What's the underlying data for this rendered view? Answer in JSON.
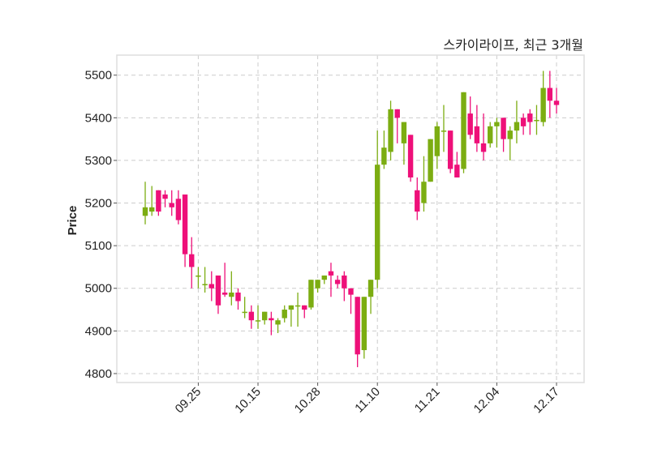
{
  "chart_data": {
    "type": "candlestick",
    "title": "스카이라이프, 최근 3개월",
    "xlabel": "",
    "ylabel": "Price",
    "ylim": [
      4779,
      5547
    ],
    "grid": true,
    "colors": {
      "up": "#7cad12",
      "down": "#ee1079",
      "grid": "#cccccc",
      "frame": "#dddddd"
    },
    "yticks": [
      4800,
      4900,
      5000,
      5100,
      5200,
      5300,
      5400,
      5500
    ],
    "xticks": [
      {
        "index": 8,
        "label": "09.25"
      },
      {
        "index": 17,
        "label": "10.15"
      },
      {
        "index": 26,
        "label": "10.28"
      },
      {
        "index": 35,
        "label": "11.10"
      },
      {
        "index": 44,
        "label": "11.21"
      },
      {
        "index": 53,
        "label": "12.04"
      },
      {
        "index": 62,
        "label": "12.17"
      }
    ],
    "ohlc": [
      [
        5170,
        5250,
        5150,
        5190
      ],
      [
        5180,
        5240,
        5170,
        5190
      ],
      [
        5230,
        5230,
        5170,
        5180
      ],
      [
        5220,
        5230,
        5190,
        5210
      ],
      [
        5200,
        5230,
        5170,
        5190
      ],
      [
        5210,
        5230,
        5150,
        5160
      ],
      [
        5220,
        5220,
        5050,
        5080
      ],
      [
        5080,
        5120,
        5000,
        5050
      ],
      [
        5030,
        5050,
        5000,
        5030
      ],
      [
        5010,
        5050,
        4990,
        5010
      ],
      [
        5010,
        5040,
        4970,
        5000
      ],
      [
        5030,
        5030,
        4940,
        4960
      ],
      [
        4990,
        5060,
        4980,
        4985
      ],
      [
        4980,
        5040,
        4960,
        4990
      ],
      [
        4990,
        5000,
        4950,
        4970
      ],
      [
        4945,
        4980,
        4930,
        4945
      ],
      [
        4945,
        4960,
        4905,
        4925
      ],
      [
        4925,
        4960,
        4905,
        4925
      ],
      [
        4925,
        4945,
        4915,
        4945
      ],
      [
        4930,
        4945,
        4890,
        4925
      ],
      [
        4915,
        4930,
        4895,
        4925
      ],
      [
        4930,
        4960,
        4920,
        4950
      ],
      [
        4950,
        4960,
        4910,
        4960
      ],
      [
        4960,
        4990,
        4910,
        4960
      ],
      [
        4960,
        4960,
        4930,
        4950
      ],
      [
        4955,
        5020,
        4950,
        5020
      ],
      [
        5000,
        5020,
        4990,
        5020
      ],
      [
        5020,
        5030,
        5010,
        5030
      ],
      [
        5040,
        5060,
        4980,
        5030
      ],
      [
        5020,
        5030,
        5000,
        5010
      ],
      [
        5030,
        5040,
        4970,
        5000
      ],
      [
        5000,
        5000,
        4940,
        4985
      ],
      [
        4980,
        4980,
        4815,
        4845
      ],
      [
        4855,
        4980,
        4835,
        4980
      ],
      [
        4980,
        5020,
        4940,
        5020
      ],
      [
        5020,
        5370,
        5000,
        5290
      ],
      [
        5290,
        5370,
        5280,
        5330
      ],
      [
        5320,
        5440,
        5300,
        5420
      ],
      [
        5420,
        5420,
        5340,
        5400
      ],
      [
        5340,
        5390,
        5290,
        5390
      ],
      [
        5360,
        5360,
        5250,
        5260
      ],
      [
        5230,
        5260,
        5160,
        5180
      ],
      [
        5200,
        5310,
        5180,
        5250
      ],
      [
        5250,
        5350,
        5250,
        5350
      ],
      [
        5310,
        5390,
        5280,
        5380
      ],
      [
        5370,
        5430,
        5320,
        5370
      ],
      [
        5370,
        5370,
        5270,
        5280
      ],
      [
        5290,
        5320,
        5260,
        5260
      ],
      [
        5280,
        5460,
        5270,
        5460
      ],
      [
        5410,
        5450,
        5350,
        5360
      ],
      [
        5380,
        5430,
        5320,
        5340
      ],
      [
        5340,
        5410,
        5300,
        5320
      ],
      [
        5340,
        5390,
        5330,
        5380
      ],
      [
        5380,
        5400,
        5330,
        5390
      ],
      [
        5400,
        5400,
        5320,
        5350
      ],
      [
        5350,
        5380,
        5300,
        5370
      ],
      [
        5370,
        5440,
        5340,
        5390
      ],
      [
        5400,
        5410,
        5360,
        5380
      ],
      [
        5410,
        5420,
        5360,
        5390
      ],
      [
        5395,
        5430,
        5360,
        5395
      ],
      [
        5390,
        5510,
        5380,
        5470
      ],
      [
        5470,
        5510,
        5400,
        5440
      ],
      [
        5440,
        5470,
        5410,
        5430
      ]
    ]
  }
}
